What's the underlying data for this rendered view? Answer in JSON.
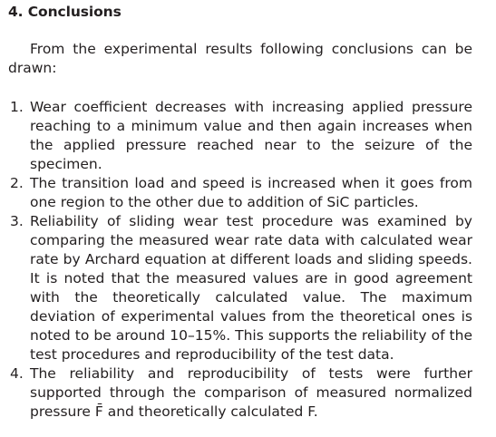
{
  "section": {
    "heading": "4. Conclusions",
    "intro": "From the experimental results following conclusions can be drawn:",
    "items": [
      {
        "number": "1.",
        "text": "Wear coefficient decreases with increasing applied pressure reaching to a minimum value and then again increases when the applied pressure reached near to the seizure of the specimen."
      },
      {
        "number": "2.",
        "text": "The transition load and speed is increased when it goes from one region to the other due to addition of SiC particles."
      },
      {
        "number": "3.",
        "text": "Reliability of sliding wear test procedure was examined by comparing the measured wear rate data with calculated wear rate by Archard equation at different loads and sliding speeds. It is noted that the measured values are in good agreement with the theoretically calculated value. The maximum deviation of experimental values from the theoretical ones is noted to be around 10–15%. This supports the reliability of the test procedures and reproducibility of the test data."
      },
      {
        "number": "4.",
        "text": "The reliability and reproducibility of tests were further supported through the comparison of measured normalized pressure F̄ and theoretically calculated F."
      }
    ]
  }
}
